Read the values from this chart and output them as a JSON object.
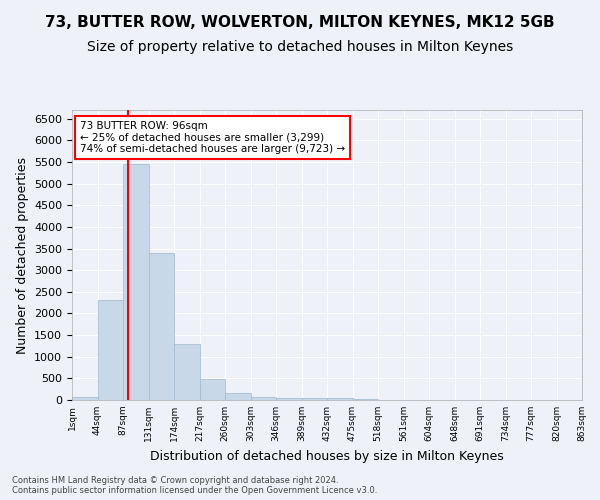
{
  "title1": "73, BUTTER ROW, WOLVERTON, MILTON KEYNES, MK12 5GB",
  "title2": "Size of property relative to detached houses in Milton Keynes",
  "xlabel": "Distribution of detached houses by size in Milton Keynes",
  "ylabel": "Number of detached properties",
  "footnote": "Contains HM Land Registry data © Crown copyright and database right 2024.\nContains public sector information licensed under the Open Government Licence v3.0.",
  "bin_labels": [
    "1sqm",
    "44sqm",
    "87sqm",
    "131sqm",
    "174sqm",
    "217sqm",
    "260sqm",
    "303sqm",
    "346sqm",
    "389sqm",
    "432sqm",
    "475sqm",
    "518sqm",
    "561sqm",
    "604sqm",
    "648sqm",
    "691sqm",
    "734sqm",
    "777sqm",
    "820sqm",
    "863sqm"
  ],
  "bar_values": [
    60,
    2300,
    5450,
    3400,
    1300,
    480,
    160,
    80,
    55,
    40,
    35,
    20,
    10,
    5,
    3,
    2,
    1,
    1,
    0,
    0
  ],
  "bar_color": "#c8d8e8",
  "bar_edge_color": "#a0b8d0",
  "property_size": 96,
  "annotation_text": "73 BUTTER ROW: 96sqm\n← 25% of detached houses are smaller (3,299)\n74% of semi-detached houses are larger (9,723) →",
  "ylim": [
    0,
    6700
  ],
  "yticks": [
    0,
    500,
    1000,
    1500,
    2000,
    2500,
    3000,
    3500,
    4000,
    4500,
    5000,
    5500,
    6000,
    6500
  ],
  "bg_color": "#eef2f8",
  "plot_bg_color": "#eef2f8",
  "grid_color": "white",
  "title1_fontsize": 11,
  "title2_fontsize": 10,
  "xlabel_fontsize": 9,
  "ylabel_fontsize": 9
}
